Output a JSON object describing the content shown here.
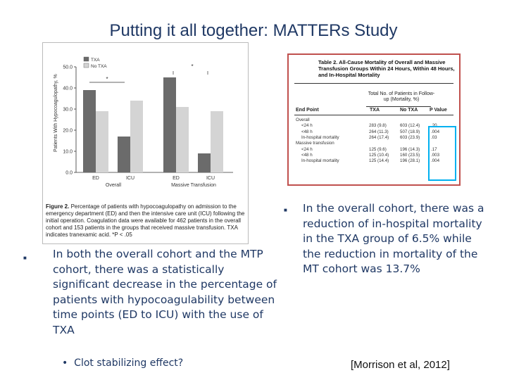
{
  "slide": {
    "title": "Putting it all together: MATTERs Study",
    "bullet_left": "In both the overall cohort and the MTP cohort, there was a statistically significant decrease in the percentage of patients with hypocoagulability between time points (ED to ICU) with the use of TXA",
    "bullet_left_sub": "Clot stabilizing effect?",
    "bullet_right": "In the overall cohort, there was a reduction of in-hospital mortality in the TXA group of 6.5% while the reduction in mortality of the MT cohort was 13.7%",
    "citation": "[Morrison et al, 2012]"
  },
  "figure": {
    "legend": [
      "TXA",
      "No TXA"
    ],
    "ylabel": "Patients With Hypocoagulopathy, %",
    "yticks": [
      "50.0",
      "40.0",
      "30.0",
      "20.0",
      "10.0",
      "0.0"
    ],
    "xticks": [
      "ED",
      "ICU",
      "ED",
      "ICU"
    ],
    "groups": [
      "Overall",
      "Massive Transfusion"
    ],
    "caption_bold": "Figure 2.",
    "caption": "Percentage of patients with hypocoagulopathy on admission to the emergency department (ED) and then the intensive care unit (ICU) following the initial operation. Coagulation data were available for 462 patients in the overall cohort and 153 patients in the groups that received massive transfusion. TXA indicates tranexamic acid. *P < .05"
  },
  "chart_data": {
    "type": "bar",
    "categories": [
      "Overall ED",
      "Overall ICU",
      "Massive Transfusion ED",
      "Massive Transfusion ICU"
    ],
    "series": [
      {
        "name": "TXA",
        "values": [
          39,
          17,
          45,
          9
        ]
      },
      {
        "name": "No TXA",
        "values": [
          29,
          34,
          31,
          29
        ]
      }
    ],
    "ylabel": "Patients With Hypocoagulopathy, %",
    "ylim": [
      0,
      50
    ],
    "colors": {
      "TXA": "#6b6b6b",
      "No TXA": "#d4d4d4"
    }
  },
  "table": {
    "title": "Table 2. All-Cause Mortality of Overall and Massive Transfusion Groups Within 24 Hours, Within 48 Hours, and In-Hospital Mortality",
    "group_header": "Total No. of Patients in Follow-up (Mortality, %)",
    "headers": [
      "End Point",
      "TXA",
      "No TXA",
      "P Value"
    ],
    "sections": [
      {
        "label": "Overall",
        "rows": [
          {
            "end_point": "<24 h",
            "txa": "283 (9.8)",
            "notxa": "603 (12.4)",
            "p": ".20"
          },
          {
            "end_point": "<48 h",
            "txa": "264 (11.3)",
            "notxa": "507 (18.9)",
            "p": ".004"
          },
          {
            "end_point": "In-hospital mortality",
            "txa": "264 (17.4)",
            "notxa": "603 (23.9)",
            "p": ".03"
          }
        ]
      },
      {
        "label": "Massive transfusion",
        "rows": [
          {
            "end_point": "<24 h",
            "txa": "125 (9.6)",
            "notxa": "196 (14.3)",
            "p": ".17"
          },
          {
            "end_point": "<48 h",
            "txa": "125 (10.4)",
            "notxa": "160 (23.5)",
            "p": ".003"
          },
          {
            "end_point": "In-hospital mortality",
            "txa": "125 (14.4)",
            "notxa": "196 (28.1)",
            "p": ".004"
          }
        ]
      }
    ]
  }
}
